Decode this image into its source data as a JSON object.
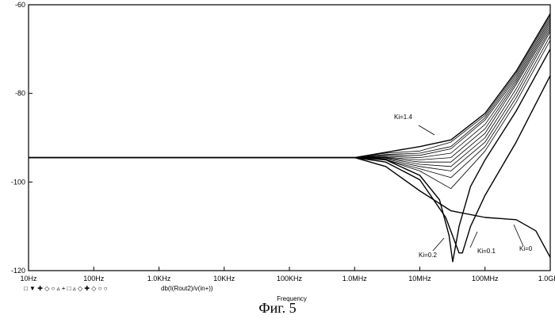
{
  "chart_data": {
    "type": "line",
    "title": "",
    "xlabel": "Frequency",
    "ylabel": "",
    "x_scale": "log",
    "xlim": [
      10,
      1000000000
    ],
    "ylim": [
      -120,
      -60
    ],
    "x_tick_values": [
      10,
      100,
      1000,
      10000,
      100000,
      1000000,
      10000000,
      100000000,
      1000000000
    ],
    "x_tick_labels": [
      "10Hz",
      "100Hz",
      "1.0KHz",
      "10KHz",
      "100KHz",
      "1.0MHz",
      "10MHz",
      "100MHz",
      "1.0GHz"
    ],
    "y_tick_values": [
      -60,
      -80,
      -100,
      -120
    ],
    "y_tick_labels": [
      "-60",
      "-80",
      "-100",
      "-120"
    ],
    "grid": false,
    "trace_label": "db(I(Rout2)/v(in+))",
    "marker_legend": "□ ▼ ✚ ◇ ○ ▵ + □ ▵ ◇ ✚ ◇ ○ ○",
    "series": [
      {
        "name": "Ki=0",
        "x": [
          10,
          1000000,
          3000000,
          10000000,
          30000000,
          100000000,
          300000000,
          600000000,
          1000000000
        ],
        "values": [
          -94.5,
          -94.5,
          -96.5,
          -102,
          -106.5,
          -108,
          -108.5,
          -111,
          -117
        ]
      },
      {
        "name": "Ki=0.1",
        "x": [
          10,
          1000000,
          3000000,
          10000000,
          25000000,
          40000000,
          45000000,
          60000000,
          100000000,
          300000000,
          1000000000
        ],
        "values": [
          -94.5,
          -94.5,
          -95.5,
          -99.5,
          -108,
          -116,
          -116,
          -110,
          -103,
          -91,
          -76
        ]
      },
      {
        "name": "Ki=0.2",
        "x": [
          10,
          1000000,
          3000000,
          10000000,
          20000000,
          28000000,
          32000000,
          40000000,
          60000000,
          100000000,
          300000000,
          1000000000
        ],
        "values": [
          -94.5,
          -94.5,
          -95,
          -98.5,
          -104,
          -112,
          -118,
          -110,
          -101,
          -95,
          -84,
          -70
        ]
      },
      {
        "name": "",
        "x": [
          10,
          1000000,
          3000000,
          10000000,
          30000000,
          100000000,
          300000000,
          1000000000
        ],
        "values": [
          -94.5,
          -94.5,
          -95,
          -97.5,
          -101.5,
          -93,
          -82,
          -68
        ]
      },
      {
        "name": "",
        "x": [
          10,
          1000000,
          3000000,
          10000000,
          30000000,
          100000000,
          300000000,
          1000000000
        ],
        "values": [
          -94.5,
          -94.5,
          -95,
          -97,
          -99,
          -92,
          -81,
          -67
        ]
      },
      {
        "name": "",
        "x": [
          10,
          1000000,
          3000000,
          10000000,
          30000000,
          100000000,
          300000000,
          1000000000
        ],
        "values": [
          -94.5,
          -94.5,
          -94.8,
          -96.5,
          -97.5,
          -91,
          -80,
          -66
        ]
      },
      {
        "name": "",
        "x": [
          10,
          1000000,
          3000000,
          10000000,
          30000000,
          100000000,
          300000000,
          1000000000
        ],
        "values": [
          -94.5,
          -94.5,
          -94.6,
          -96,
          -96.5,
          -90,
          -79,
          -65.5
        ]
      },
      {
        "name": "",
        "x": [
          10,
          1000000,
          3000000,
          10000000,
          30000000,
          100000000,
          300000000,
          1000000000
        ],
        "values": [
          -94.5,
          -94.5,
          -94.5,
          -95.5,
          -95.5,
          -89,
          -78,
          -65
        ]
      },
      {
        "name": "",
        "x": [
          10,
          1000000,
          3000000,
          10000000,
          30000000,
          100000000,
          300000000,
          1000000000
        ],
        "values": [
          -94.5,
          -94.5,
          -94.4,
          -95,
          -94.5,
          -88,
          -77.5,
          -64.5
        ]
      },
      {
        "name": "",
        "x": [
          10,
          1000000,
          3000000,
          10000000,
          30000000,
          100000000,
          300000000,
          1000000000
        ],
        "values": [
          -94.5,
          -94.5,
          -94.2,
          -94.5,
          -93.5,
          -87,
          -77,
          -64
        ]
      },
      {
        "name": "",
        "x": [
          10,
          1000000,
          3000000,
          10000000,
          30000000,
          100000000,
          300000000,
          1000000000
        ],
        "values": [
          -94.5,
          -94.5,
          -94,
          -94,
          -92.5,
          -86,
          -76.5,
          -63.5
        ]
      },
      {
        "name": "",
        "x": [
          10,
          1000000,
          3000000,
          10000000,
          30000000,
          100000000,
          300000000,
          1000000000
        ],
        "values": [
          -94.5,
          -94.5,
          -93.8,
          -93.5,
          -92,
          -85.5,
          -76,
          -63
        ]
      },
      {
        "name": "",
        "x": [
          10,
          1000000,
          3000000,
          10000000,
          30000000,
          100000000,
          300000000,
          1000000000
        ],
        "values": [
          -94.5,
          -94.5,
          -93.5,
          -93,
          -91,
          -85,
          -75.5,
          -62.5
        ]
      },
      {
        "name": "Ki=1.4",
        "x": [
          10,
          1000000,
          3000000,
          10000000,
          30000000,
          100000000,
          300000000,
          1000000000
        ],
        "values": [
          -94.5,
          -94.5,
          -93.3,
          -92,
          -90.5,
          -84.5,
          -75,
          -62
        ]
      }
    ],
    "annotations": [
      "Ki=1.4",
      "Ki=0.2",
      "Ki=0.1",
      "Ki=0"
    ]
  },
  "caption": "Фиг. 5"
}
